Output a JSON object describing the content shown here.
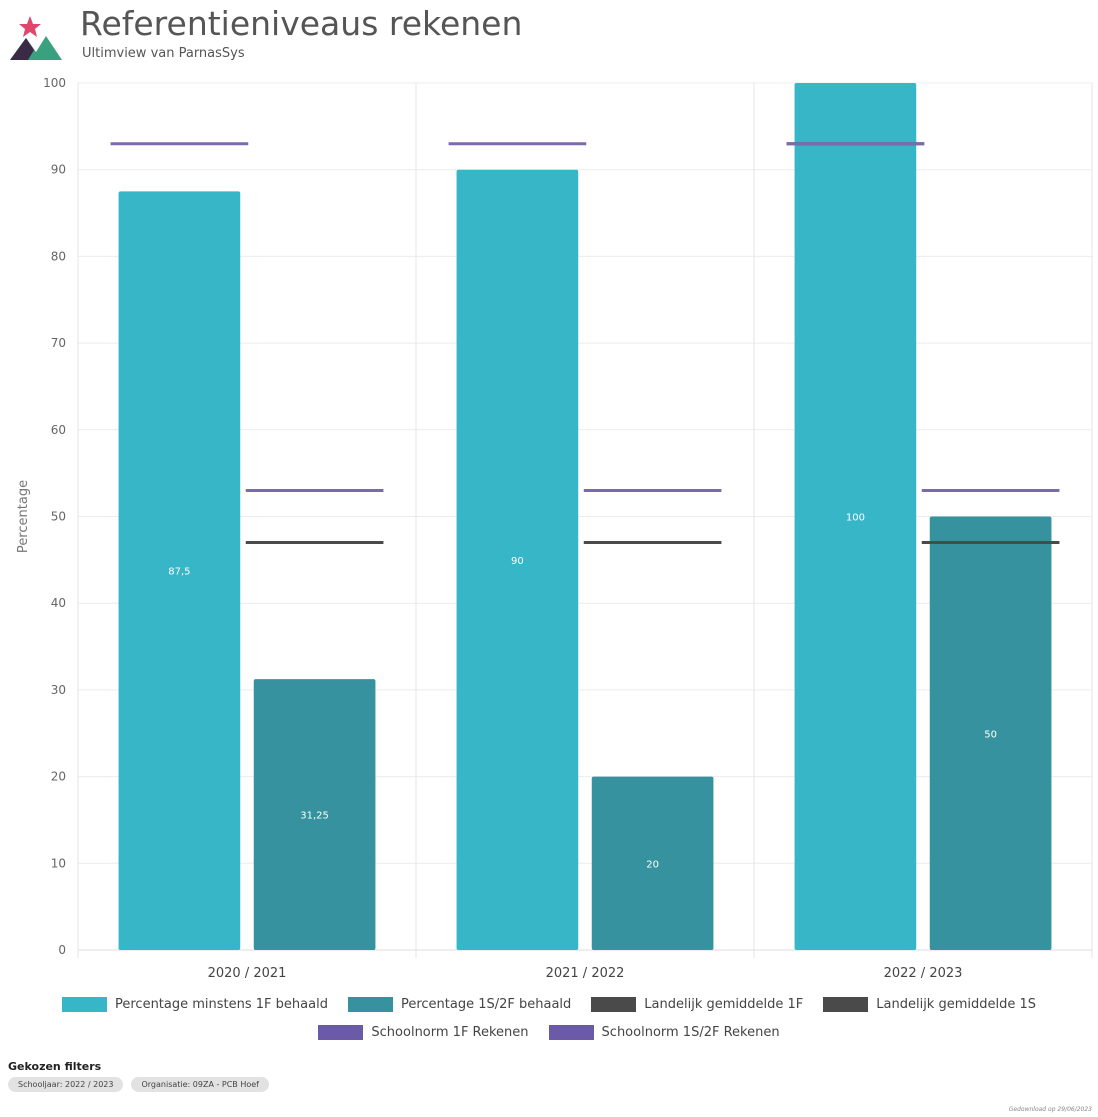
{
  "header": {
    "title": "Referentieniveaus rekenen",
    "subtitle": "Ultimview van ParnasSys"
  },
  "colors": {
    "cyan": "#37b6c8",
    "teal": "#35929e",
    "purple": "#7b6aae",
    "gray": "#4a4a4a"
  },
  "chart_data": {
    "type": "bar",
    "ylabel": "Percentage",
    "ylim": [
      0,
      100
    ],
    "yticks": [
      0,
      10,
      20,
      30,
      40,
      50,
      60,
      70,
      80,
      90,
      100
    ],
    "grid": true,
    "categories": [
      "2020 / 2021",
      "2021 / 2022",
      "2022 / 2023"
    ],
    "series": [
      {
        "name": "Percentage minstens 1F behaald",
        "values": [
          87.5,
          90,
          100
        ],
        "labels": [
          "87,5",
          "90",
          "100"
        ]
      },
      {
        "name": "Percentage 1S/2F behaald",
        "values": [
          31.25,
          20,
          50
        ],
        "labels": [
          "31,25",
          "20",
          "50"
        ]
      }
    ],
    "reference_lines": [
      {
        "name": "Landelijk gemiddelde 1F",
        "target": "bar1",
        "values": [
          null,
          null,
          93
        ]
      },
      {
        "name": "Landelijk gemiddelde 1S",
        "target": "bar2",
        "values": [
          47,
          47,
          47
        ]
      },
      {
        "name": "Schoolnorm 1F Rekenen",
        "target": "bar1",
        "values": [
          93,
          93,
          93
        ]
      },
      {
        "name": "Schoolnorm 1S/2F Rekenen",
        "target": "bar2",
        "values": [
          53,
          53,
          53
        ]
      }
    ],
    "legend_position": "bottom"
  },
  "legend": [
    {
      "label": "Percentage minstens 1F behaald",
      "color": "#37b6c8"
    },
    {
      "label": "Percentage 1S/2F behaald",
      "color": "#35929e"
    },
    {
      "label": "Landelijk gemiddelde 1F",
      "color": "#4a4a4a"
    },
    {
      "label": "Landelijk gemiddelde 1S",
      "color": "#4a4a4a"
    },
    {
      "label": "Schoolnorm 1F Rekenen",
      "color": "#6a5aa8"
    },
    {
      "label": "Schoolnorm 1S/2F Rekenen",
      "color": "#6a5aa8"
    }
  ],
  "filters": {
    "title": "Gekozen filters",
    "chips": [
      "Schooljaar: 2022 / 2023",
      "Organisatie: 09ZA - PCB Hoef"
    ]
  },
  "footer_note": "Gedownload op 29/06/2023"
}
